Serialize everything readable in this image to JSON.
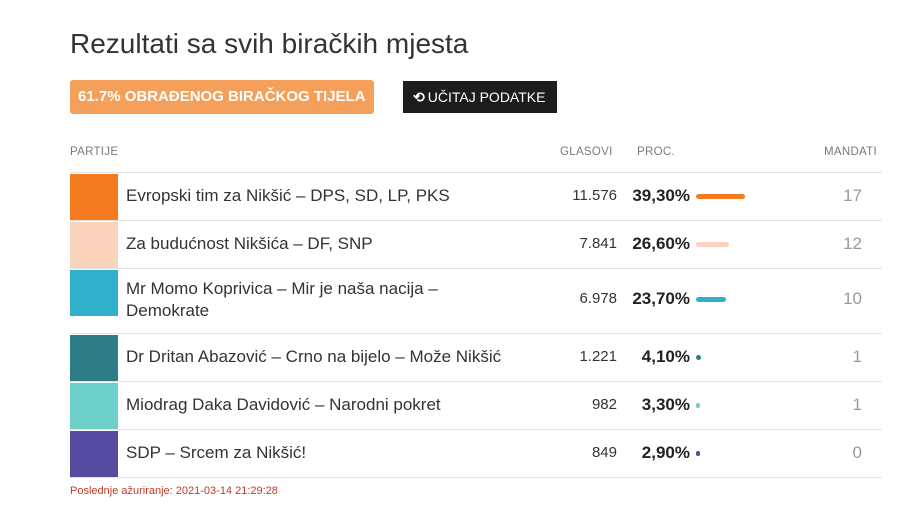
{
  "page": {
    "title": "Rezultati sa svih biračkih mjesta",
    "processed_badge": "61.7% OBRAĐENOG BIRAČKOG TIJELA",
    "processed_fraction": 0.617,
    "reload_button": "UČITAJ PODATKE",
    "reload_icon": "refresh-icon"
  },
  "table": {
    "headers": {
      "parties": "PARTIJE",
      "votes": "GLASOVI",
      "percent": "PROC.",
      "seats": "MANDATI"
    },
    "rows": [
      {
        "name": "Evropski tim za Nikšić – DPS, SD, LP, PKS",
        "votes": "11.576",
        "percent": "39,30%",
        "percent_value": 39.3,
        "seats": "17",
        "color": "#f47b20"
      },
      {
        "name": "Za budućnost Nikšića – DF, SNP",
        "votes": "7.841",
        "percent": "26,60%",
        "percent_value": 26.6,
        "seats": "12",
        "color": "#f9d3bb"
      },
      {
        "name": "Mr Momo Koprivica – Mir je naša nacija – Demokrate",
        "votes": "6.978",
        "percent": "23,70%",
        "percent_value": 23.7,
        "seats": "10",
        "color": "#31b0cb"
      },
      {
        "name": "Dr Dritan Abazović – Crno na bijelo – Može Nikšić",
        "votes": "1.221",
        "percent": "4,10%",
        "percent_value": 4.1,
        "seats": "1",
        "color": "#2e7d86"
      },
      {
        "name": "Miodrag Daka Davidović – Narodni pokret",
        "votes": "982",
        "percent": "3,30%",
        "percent_value": 3.3,
        "seats": "1",
        "color": "#6ccfc9"
      },
      {
        "name": "SDP – Srcem za Nikšić!",
        "votes": "849",
        "percent": "2,90%",
        "percent_value": 2.9,
        "seats": "0",
        "color": "#544aa0"
      }
    ]
  },
  "footer": {
    "last_updated": "Poslednje ažuriranje: 2021-03-14 21:29:28"
  }
}
